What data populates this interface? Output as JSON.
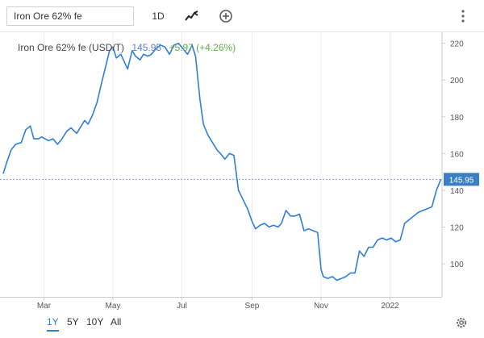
{
  "toolbar": {
    "symbol_value": "Iron Ore 62% fe",
    "interval_label": "1D",
    "chart_type_icon": "line-chart-icon",
    "add_icon": "plus-circle-icon",
    "more_icon": "vertical-dots-icon"
  },
  "legend": {
    "name": "Iron Ore 62% fe (USD/T)",
    "price": "145.95",
    "change": "+5.97 (+4.26%)"
  },
  "ranges": {
    "items": [
      "1Y",
      "5Y",
      "10Y",
      "All"
    ],
    "active": "1Y",
    "settings_icon": "gear-icon"
  },
  "colors": {
    "line": "#2f7ed8",
    "price_label_bg": "#3a7fc1",
    "change_positive": "#5fae4f"
  },
  "chart_data": {
    "type": "line",
    "title": "",
    "xlabel": "",
    "ylabel": "",
    "ylim": [
      82,
      226
    ],
    "y_ticks": [
      100,
      120,
      140,
      160,
      180,
      200,
      220
    ],
    "x_tick_labels": [
      "Mar",
      "May",
      "Jul",
      "Sep",
      "Nov",
      "2022"
    ],
    "x_tick_dates": [
      "2021-03-01",
      "2021-05-01",
      "2021-07-01",
      "2021-09-01",
      "2021-11-01",
      "2022-01-01"
    ],
    "x_range": [
      "2021-01-24",
      "2022-02-16"
    ],
    "last_price_label": "145.95",
    "grid": "vertical",
    "series": [
      {
        "name": "",
        "x": [
          "2021-01-24",
          "2021-01-27",
          "2021-01-31",
          "2021-02-04",
          "2021-02-09",
          "2021-02-13",
          "2021-02-17",
          "2021-02-20",
          "2021-02-24",
          "2021-02-27",
          "2021-03-02",
          "2021-03-05",
          "2021-03-09",
          "2021-03-13",
          "2021-03-17",
          "2021-03-21",
          "2021-03-25",
          "2021-03-30",
          "2021-04-03",
          "2021-04-06",
          "2021-04-09",
          "2021-04-13",
          "2021-04-17",
          "2021-04-20",
          "2021-04-24",
          "2021-04-28",
          "2021-05-01",
          "2021-05-04",
          "2021-05-08",
          "2021-05-11",
          "2021-05-14",
          "2021-05-18",
          "2021-05-21",
          "2021-05-25",
          "2021-05-28",
          "2021-06-01",
          "2021-06-04",
          "2021-06-08",
          "2021-06-12",
          "2021-06-16",
          "2021-06-20",
          "2021-06-24",
          "2021-06-28",
          "2021-07-02",
          "2021-07-06",
          "2021-07-10",
          "2021-07-13",
          "2021-07-17",
          "2021-07-20",
          "2021-07-24",
          "2021-07-28",
          "2021-08-01",
          "2021-08-04",
          "2021-08-08",
          "2021-08-12",
          "2021-08-16",
          "2021-08-20",
          "2021-08-24",
          "2021-08-28",
          "2021-09-01",
          "2021-09-04",
          "2021-09-08",
          "2021-09-12",
          "2021-09-16",
          "2021-09-20",
          "2021-09-24",
          "2021-09-27",
          "2021-10-01",
          "2021-10-05",
          "2021-10-09",
          "2021-10-13",
          "2021-10-17",
          "2021-10-21",
          "2021-10-25",
          "2021-10-29",
          "2021-11-01",
          "2021-11-03",
          "2021-11-07",
          "2021-11-11",
          "2021-11-15",
          "2021-11-19",
          "2021-11-23",
          "2021-11-27",
          "2021-12-01",
          "2021-12-05",
          "2021-12-09",
          "2021-12-13",
          "2021-12-17",
          "2021-12-21",
          "2021-12-25",
          "2021-12-29",
          "2022-01-02",
          "2022-01-06",
          "2022-01-10",
          "2022-01-14",
          "2022-01-18",
          "2022-01-22",
          "2022-01-26",
          "2022-01-30",
          "2022-02-03",
          "2022-02-07",
          "2022-02-11",
          "2022-02-15"
        ],
        "y": [
          149,
          155,
          162,
          165,
          166,
          173,
          175,
          168,
          168,
          169,
          168,
          167,
          168,
          165,
          168,
          172,
          174,
          171,
          175,
          178,
          176,
          181,
          188,
          196,
          206,
          216,
          218,
          212,
          214,
          210,
          206,
          216,
          213,
          211,
          214,
          213,
          214,
          217,
          219,
          218,
          214,
          219,
          220,
          217,
          214,
          219,
          213,
          189,
          176,
          170,
          166,
          162,
          160,
          157,
          160,
          159,
          140,
          135,
          130,
          123,
          119,
          121,
          122,
          120,
          121,
          120,
          122,
          129,
          126,
          126,
          127,
          118,
          119,
          118,
          117,
          97,
          93,
          92,
          93,
          91,
          92,
          93,
          95,
          95,
          107,
          104,
          109,
          109,
          113,
          114,
          113,
          114,
          112,
          113,
          122,
          124,
          126,
          128,
          129,
          130,
          131,
          140,
          146
        ]
      }
    ]
  }
}
